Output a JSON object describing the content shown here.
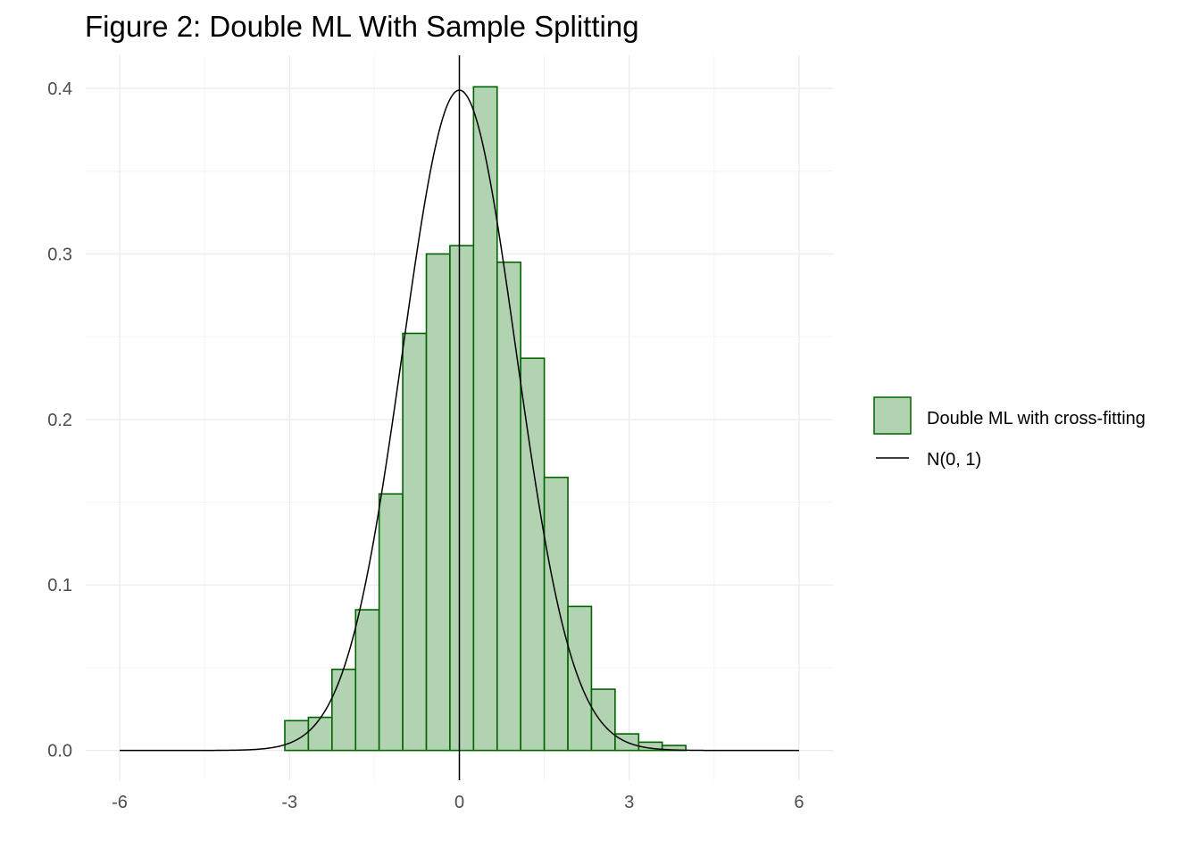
{
  "title": "Figure 2: Double ML With Sample Splitting",
  "chart_data": {
    "type": "bar",
    "title": "Figure 2: Double ML With Sample Splitting",
    "xlabel": "",
    "ylabel": "",
    "xlim": [
      -6.6,
      6.6
    ],
    "ylim": [
      -0.018,
      0.42
    ],
    "grid": true,
    "legend_position": "right",
    "x_ticks": [
      -6,
      -3,
      0,
      3,
      6
    ],
    "x_tick_labels": [
      "-6",
      "-3",
      "0",
      "3",
      "6"
    ],
    "y_ticks": [
      0.0,
      0.1,
      0.2,
      0.3,
      0.4
    ],
    "y_tick_labels": [
      "0.0",
      "0.1",
      "0.2",
      "0.3",
      "0.4"
    ],
    "reference_line_x": 0,
    "bin_width": 0.417,
    "series": [
      {
        "name": "Double ML with cross-fitting",
        "kind": "histogram",
        "fill": "#b2d3b2",
        "stroke": "#006400",
        "bins": [
          {
            "x0": -3.083,
            "x1": -2.667,
            "density": 0.018
          },
          {
            "x0": -2.667,
            "x1": -2.25,
            "density": 0.02
          },
          {
            "x0": -2.25,
            "x1": -1.833,
            "density": 0.049
          },
          {
            "x0": -1.833,
            "x1": -1.417,
            "density": 0.085
          },
          {
            "x0": -1.417,
            "x1": -1.0,
            "density": 0.155
          },
          {
            "x0": -1.0,
            "x1": -0.583,
            "density": 0.252
          },
          {
            "x0": -0.583,
            "x1": -0.167,
            "density": 0.3
          },
          {
            "x0": -0.167,
            "x1": 0.25,
            "density": 0.305
          },
          {
            "x0": 0.25,
            "x1": 0.667,
            "density": 0.401
          },
          {
            "x0": 0.667,
            "x1": 1.083,
            "density": 0.295
          },
          {
            "x0": 1.083,
            "x1": 1.5,
            "density": 0.237
          },
          {
            "x0": 1.5,
            "x1": 1.917,
            "density": 0.165
          },
          {
            "x0": 1.917,
            "x1": 2.333,
            "density": 0.087
          },
          {
            "x0": 2.333,
            "x1": 2.75,
            "density": 0.037
          },
          {
            "x0": 2.75,
            "x1": 3.167,
            "density": 0.01
          },
          {
            "x0": 3.167,
            "x1": 3.583,
            "density": 0.005
          },
          {
            "x0": 3.583,
            "x1": 4.0,
            "density": 0.003
          }
        ]
      },
      {
        "name": "N(0, 1)",
        "kind": "density-line",
        "stroke": "#000000",
        "x_range": [
          -6,
          6
        ],
        "mean": 0,
        "sd": 1
      }
    ]
  },
  "legend": {
    "items": [
      {
        "label": "Double ML with cross-fitting",
        "swatch": "box"
      },
      {
        "label": "N(0, 1)",
        "swatch": "line"
      }
    ]
  },
  "colors": {
    "grid_major": "#ebebeb",
    "grid_minor": "#f4f4f4",
    "hist_fill": "#b2d3b2",
    "hist_stroke": "#006400",
    "curve": "#000000",
    "tick_text": "#4d4d4d"
  }
}
